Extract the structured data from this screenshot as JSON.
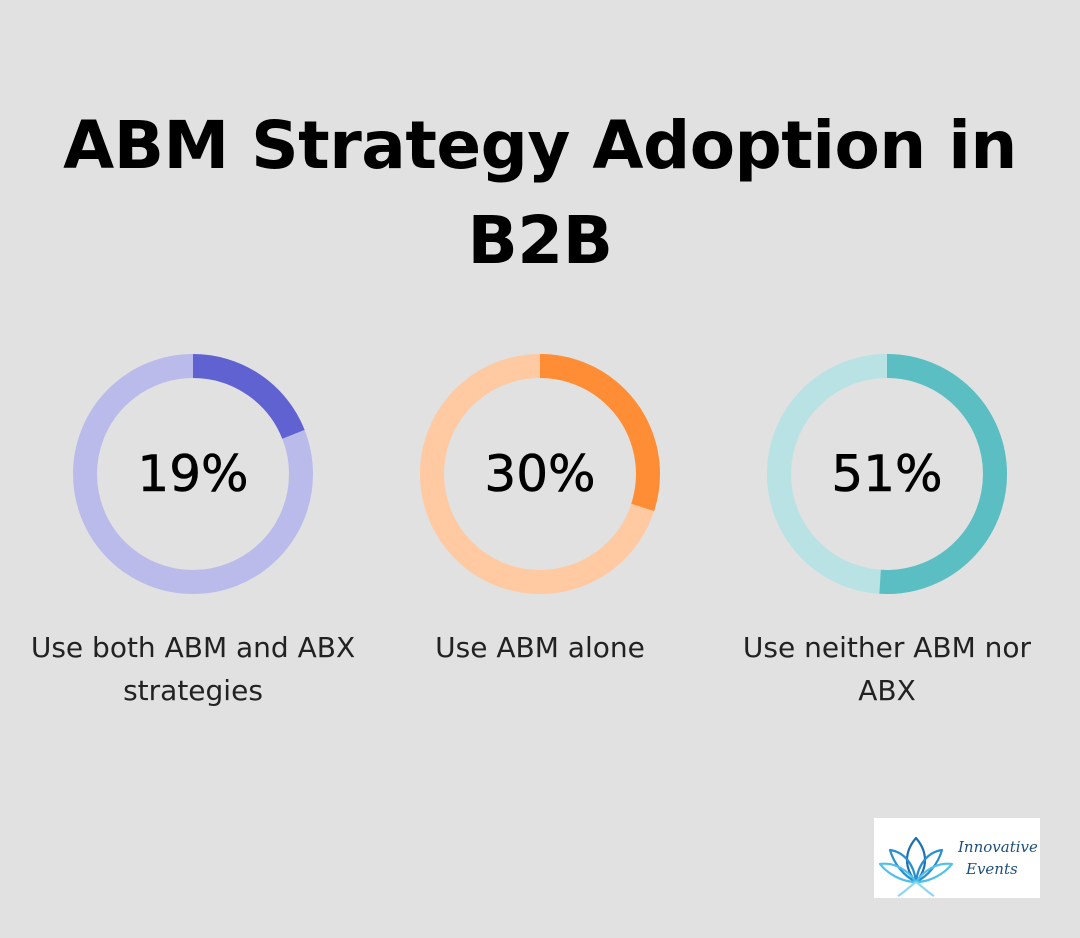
{
  "title": "ABM Strategy Adoption in B2B",
  "chart_data": {
    "type": "donut",
    "items": [
      {
        "value": 19,
        "display": "19%",
        "label": "Use both ABM and ABX strategies",
        "color": "#6062d2",
        "track": "#babbea"
      },
      {
        "value": 30,
        "display": "30%",
        "label": "Use ABM alone",
        "color": "#ff8d35",
        "track": "#ffc9a2"
      },
      {
        "value": 51,
        "display": "51%",
        "label": "Use neither ABM nor ABX",
        "color": "#5bbec2",
        "track": "#b8e2e4"
      }
    ]
  },
  "logo": {
    "text": "Innovative Events",
    "line1": "Innovative",
    "line2": "Events",
    "icon": "lotus-flower-icon"
  }
}
